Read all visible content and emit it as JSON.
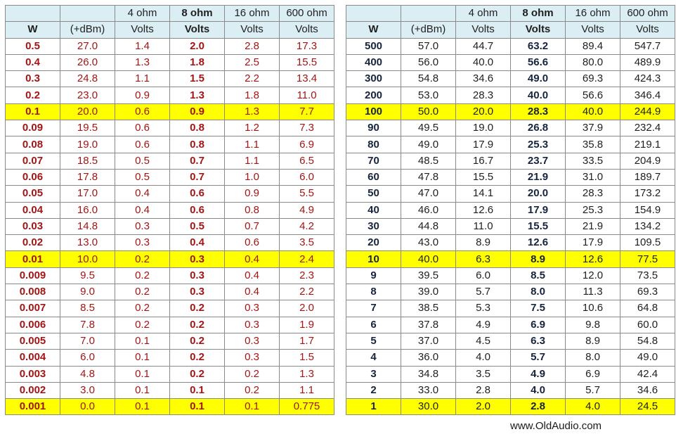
{
  "header_top": [
    "",
    "",
    "4 ohm",
    "8 ohm",
    "16 ohm",
    "600 ohm"
  ],
  "header_sub": [
    "W",
    "(+dBm)",
    "Volts",
    "Volts",
    "Volts",
    "Volts"
  ],
  "highlight_color": "#ffff00",
  "header_bg": "#dbeef4",
  "left_text_color": "#a31515",
  "right_bold_color": "#17243d",
  "left_table": [
    {
      "w": "0.5",
      "dbm": "27.0",
      "v4": "1.4",
      "v8": "2.0",
      "v16": "2.8",
      "v600": "17.3",
      "highlight": false
    },
    {
      "w": "0.4",
      "dbm": "26.0",
      "v4": "1.3",
      "v8": "1.8",
      "v16": "2.5",
      "v600": "15.5",
      "highlight": false
    },
    {
      "w": "0.3",
      "dbm": "24.8",
      "v4": "1.1",
      "v8": "1.5",
      "v16": "2.2",
      "v600": "13.4",
      "highlight": false
    },
    {
      "w": "0.2",
      "dbm": "23.0",
      "v4": "0.9",
      "v8": "1.3",
      "v16": "1.8",
      "v600": "11.0",
      "highlight": false
    },
    {
      "w": "0.1",
      "dbm": "20.0",
      "v4": "0.6",
      "v8": "0.9",
      "v16": "1.3",
      "v600": "7.7",
      "highlight": true
    },
    {
      "w": "0.09",
      "dbm": "19.5",
      "v4": "0.6",
      "v8": "0.8",
      "v16": "1.2",
      "v600": "7.3",
      "highlight": false
    },
    {
      "w": "0.08",
      "dbm": "19.0",
      "v4": "0.6",
      "v8": "0.8",
      "v16": "1.1",
      "v600": "6.9",
      "highlight": false
    },
    {
      "w": "0.07",
      "dbm": "18.5",
      "v4": "0.5",
      "v8": "0.7",
      "v16": "1.1",
      "v600": "6.5",
      "highlight": false
    },
    {
      "w": "0.06",
      "dbm": "17.8",
      "v4": "0.5",
      "v8": "0.7",
      "v16": "1.0",
      "v600": "6.0",
      "highlight": false
    },
    {
      "w": "0.05",
      "dbm": "17.0",
      "v4": "0.4",
      "v8": "0.6",
      "v16": "0.9",
      "v600": "5.5",
      "highlight": false
    },
    {
      "w": "0.04",
      "dbm": "16.0",
      "v4": "0.4",
      "v8": "0.6",
      "v16": "0.8",
      "v600": "4.9",
      "highlight": false
    },
    {
      "w": "0.03",
      "dbm": "14.8",
      "v4": "0.3",
      "v8": "0.5",
      "v16": "0.7",
      "v600": "4.2",
      "highlight": false
    },
    {
      "w": "0.02",
      "dbm": "13.0",
      "v4": "0.3",
      "v8": "0.4",
      "v16": "0.6",
      "v600": "3.5",
      "highlight": false
    },
    {
      "w": "0.01",
      "dbm": "10.0",
      "v4": "0.2",
      "v8": "0.3",
      "v16": "0.4",
      "v600": "2.4",
      "highlight": true
    },
    {
      "w": "0.009",
      "dbm": "9.5",
      "v4": "0.2",
      "v8": "0.3",
      "v16": "0.4",
      "v600": "2.3",
      "highlight": false
    },
    {
      "w": "0.008",
      "dbm": "9.0",
      "v4": "0.2",
      "v8": "0.3",
      "v16": "0.4",
      "v600": "2.2",
      "highlight": false
    },
    {
      "w": "0.007",
      "dbm": "8.5",
      "v4": "0.2",
      "v8": "0.2",
      "v16": "0.3",
      "v600": "2.0",
      "highlight": false
    },
    {
      "w": "0.006",
      "dbm": "7.8",
      "v4": "0.2",
      "v8": "0.2",
      "v16": "0.3",
      "v600": "1.9",
      "highlight": false
    },
    {
      "w": "0.005",
      "dbm": "7.0",
      "v4": "0.1",
      "v8": "0.2",
      "v16": "0.3",
      "v600": "1.7",
      "highlight": false
    },
    {
      "w": "0.004",
      "dbm": "6.0",
      "v4": "0.1",
      "v8": "0.2",
      "v16": "0.3",
      "v600": "1.5",
      "highlight": false
    },
    {
      "w": "0.003",
      "dbm": "4.8",
      "v4": "0.1",
      "v8": "0.2",
      "v16": "0.2",
      "v600": "1.3",
      "highlight": false
    },
    {
      "w": "0.002",
      "dbm": "3.0",
      "v4": "0.1",
      "v8": "0.1",
      "v16": "0.2",
      "v600": "1.1",
      "highlight": false
    },
    {
      "w": "0.001",
      "dbm": "0.0",
      "v4": "0.1",
      "v8": "0.1",
      "v16": "0.1",
      "v600": "0.775",
      "highlight": true
    }
  ],
  "right_table": [
    {
      "w": "500",
      "dbm": "57.0",
      "v4": "44.7",
      "v8": "63.2",
      "v16": "89.4",
      "v600": "547.7",
      "highlight": false
    },
    {
      "w": "400",
      "dbm": "56.0",
      "v4": "40.0",
      "v8": "56.6",
      "v16": "80.0",
      "v600": "489.9",
      "highlight": false
    },
    {
      "w": "300",
      "dbm": "54.8",
      "v4": "34.6",
      "v8": "49.0",
      "v16": "69.3",
      "v600": "424.3",
      "highlight": false
    },
    {
      "w": "200",
      "dbm": "53.0",
      "v4": "28.3",
      "v8": "40.0",
      "v16": "56.6",
      "v600": "346.4",
      "highlight": false
    },
    {
      "w": "100",
      "dbm": "50.0",
      "v4": "20.0",
      "v8": "28.3",
      "v16": "40.0",
      "v600": "244.9",
      "highlight": true
    },
    {
      "w": "90",
      "dbm": "49.5",
      "v4": "19.0",
      "v8": "26.8",
      "v16": "37.9",
      "v600": "232.4",
      "highlight": false
    },
    {
      "w": "80",
      "dbm": "49.0",
      "v4": "17.9",
      "v8": "25.3",
      "v16": "35.8",
      "v600": "219.1",
      "highlight": false
    },
    {
      "w": "70",
      "dbm": "48.5",
      "v4": "16.7",
      "v8": "23.7",
      "v16": "33.5",
      "v600": "204.9",
      "highlight": false
    },
    {
      "w": "60",
      "dbm": "47.8",
      "v4": "15.5",
      "v8": "21.9",
      "v16": "31.0",
      "v600": "189.7",
      "highlight": false
    },
    {
      "w": "50",
      "dbm": "47.0",
      "v4": "14.1",
      "v8": "20.0",
      "v16": "28.3",
      "v600": "173.2",
      "highlight": false
    },
    {
      "w": "40",
      "dbm": "46.0",
      "v4": "12.6",
      "v8": "17.9",
      "v16": "25.3",
      "v600": "154.9",
      "highlight": false
    },
    {
      "w": "30",
      "dbm": "44.8",
      "v4": "11.0",
      "v8": "15.5",
      "v16": "21.9",
      "v600": "134.2",
      "highlight": false
    },
    {
      "w": "20",
      "dbm": "43.0",
      "v4": "8.9",
      "v8": "12.6",
      "v16": "17.9",
      "v600": "109.5",
      "highlight": false
    },
    {
      "w": "10",
      "dbm": "40.0",
      "v4": "6.3",
      "v8": "8.9",
      "v16": "12.6",
      "v600": "77.5",
      "highlight": true
    },
    {
      "w": "9",
      "dbm": "39.5",
      "v4": "6.0",
      "v8": "8.5",
      "v16": "12.0",
      "v600": "73.5",
      "highlight": false
    },
    {
      "w": "8",
      "dbm": "39.0",
      "v4": "5.7",
      "v8": "8.0",
      "v16": "11.3",
      "v600": "69.3",
      "highlight": false
    },
    {
      "w": "7",
      "dbm": "38.5",
      "v4": "5.3",
      "v8": "7.5",
      "v16": "10.6",
      "v600": "64.8",
      "highlight": false
    },
    {
      "w": "6",
      "dbm": "37.8",
      "v4": "4.9",
      "v8": "6.9",
      "v16": "9.8",
      "v600": "60.0",
      "highlight": false
    },
    {
      "w": "5",
      "dbm": "37.0",
      "v4": "4.5",
      "v8": "6.3",
      "v16": "8.9",
      "v600": "54.8",
      "highlight": false
    },
    {
      "w": "4",
      "dbm": "36.0",
      "v4": "4.0",
      "v8": "5.7",
      "v16": "8.0",
      "v600": "49.0",
      "highlight": false
    },
    {
      "w": "3",
      "dbm": "34.8",
      "v4": "3.5",
      "v8": "4.9",
      "v16": "6.9",
      "v600": "42.4",
      "highlight": false
    },
    {
      "w": "2",
      "dbm": "33.0",
      "v4": "2.8",
      "v8": "4.0",
      "v16": "5.7",
      "v600": "34.6",
      "highlight": false
    },
    {
      "w": "1",
      "dbm": "30.0",
      "v4": "2.0",
      "v8": "2.8",
      "v16": "4.0",
      "v600": "24.5",
      "highlight": true
    }
  ],
  "footer": {
    "url": "www.OldAudio.com"
  }
}
